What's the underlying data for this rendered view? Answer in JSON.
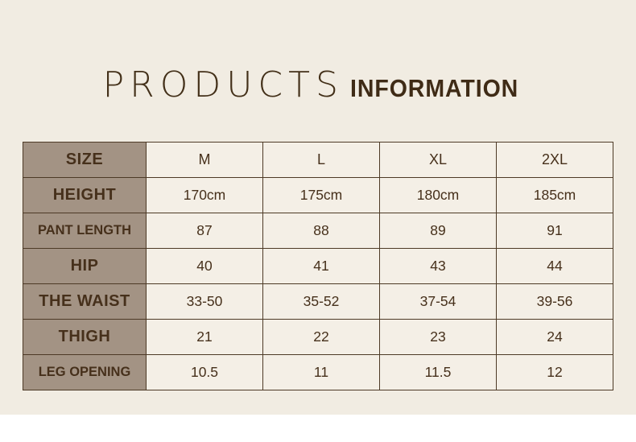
{
  "title": {
    "primary": "PRODUCTS",
    "secondary": "INFORMATION"
  },
  "colors": {
    "page_background": "#f1ece2",
    "bottom_strip": "#ffffff",
    "label_column_background": "#a39384",
    "cell_background": "#f4efe6",
    "grid_border": "#4d3a26",
    "text": "#46301b",
    "title_text": "#3f2b16"
  },
  "chart_data": {
    "type": "table",
    "title": "PRODUCTS INFORMATION",
    "header": {
      "label": "SIZE",
      "columns": [
        "M",
        "L",
        "XL",
        "2XL"
      ]
    },
    "rows": [
      {
        "label": "HEIGHT",
        "values": [
          "170cm",
          "175cm",
          "180cm",
          "185cm"
        ]
      },
      {
        "label": "PANT LENGTH",
        "values": [
          "87",
          "88",
          "89",
          "91"
        ]
      },
      {
        "label": "HIP",
        "values": [
          "40",
          "41",
          "43",
          "44"
        ]
      },
      {
        "label": "THE WAIST",
        "values": [
          "33-50",
          "35-52",
          "37-54",
          "39-56"
        ]
      },
      {
        "label": "THIGH",
        "values": [
          "21",
          "22",
          "23",
          "24"
        ]
      },
      {
        "label": "LEG OPENING",
        "values": [
          "10.5",
          "11",
          "11.5",
          "12"
        ]
      }
    ]
  }
}
